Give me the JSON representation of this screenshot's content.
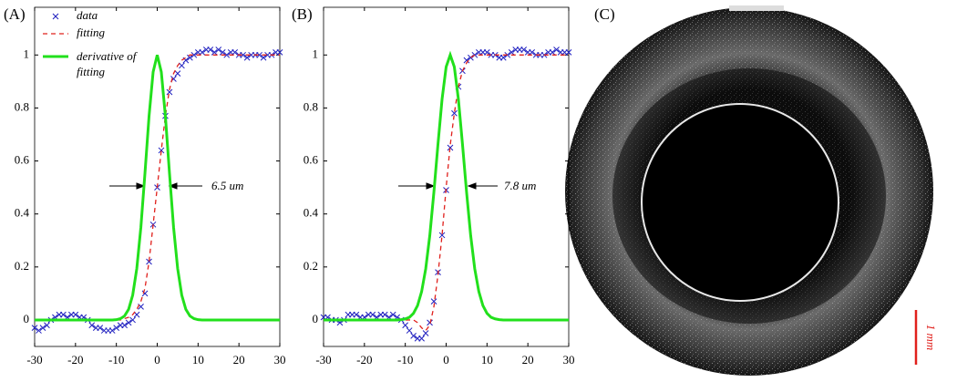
{
  "chart_data": [
    {
      "type": "line",
      "panel_label": "(A)",
      "annotation": "6.5 um",
      "legend": "upper left",
      "x": [
        -30,
        -29,
        -28,
        -27,
        -26,
        -25,
        -24,
        -23,
        -22,
        -21,
        -20,
        -19,
        -18,
        -17,
        -16,
        -15,
        -14,
        -13,
        -12,
        -11,
        -10,
        -9,
        -8,
        -7,
        -6,
        -5,
        -4,
        -3,
        -2,
        -1,
        0,
        1,
        2,
        3,
        4,
        5,
        6,
        7,
        8,
        9,
        10,
        11,
        12,
        13,
        14,
        15,
        16,
        17,
        18,
        19,
        20,
        21,
        22,
        23,
        24,
        25,
        26,
        27,
        28,
        29,
        30
      ],
      "series": [
        {
          "name": "data",
          "color": "#1f1fbf",
          "style": "marker",
          "values": [
            -0.03,
            -0.04,
            -0.03,
            -0.02,
            0,
            0.01,
            0.02,
            0.02,
            0.01,
            0.02,
            0.02,
            0.01,
            0.01,
            0,
            -0.02,
            -0.03,
            -0.03,
            -0.04,
            -0.04,
            -0.04,
            -0.03,
            -0.02,
            -0.02,
            -0.01,
            0,
            0.02,
            0.05,
            0.1,
            0.22,
            0.36,
            0.5,
            0.64,
            0.77,
            0.86,
            0.91,
            0.93,
            0.96,
            0.98,
            0.99,
            1,
            1.01,
            1.01,
            1.02,
            1.02,
            1.01,
            1.02,
            1.01,
            1,
            1.01,
            1.01,
            1,
            1,
            0.99,
            1,
            1,
            1,
            0.99,
            1,
            1,
            1.01,
            1.01
          ]
        },
        {
          "name": "fitting",
          "color": "#e0201c",
          "style": "dashed",
          "values": [
            0,
            0,
            0,
            0,
            0,
            0,
            0,
            0,
            0,
            0,
            0,
            0,
            0,
            0,
            0,
            0,
            0,
            0,
            0,
            0,
            0,
            0,
            0.005,
            0.01,
            0.02,
            0.04,
            0.07,
            0.12,
            0.22,
            0.36,
            0.5,
            0.64,
            0.77,
            0.87,
            0.93,
            0.96,
            0.98,
            0.99,
            1,
            1,
            1,
            1,
            1,
            1,
            1,
            1,
            1,
            1,
            1,
            1,
            1,
            1,
            1,
            1,
            1,
            1,
            1,
            1,
            1,
            1,
            1
          ]
        },
        {
          "name": "derivative of fitting",
          "color": "#22e01c",
          "style": "solid",
          "values": [
            0,
            0,
            0,
            0,
            0,
            0,
            0,
            0,
            0,
            0,
            0,
            0,
            0,
            0,
            0,
            0,
            0,
            0,
            0,
            0,
            0.001,
            0.005,
            0.015,
            0.04,
            0.094,
            0.194,
            0.35,
            0.554,
            0.769,
            0.936,
            1,
            0.936,
            0.769,
            0.554,
            0.35,
            0.194,
            0.094,
            0.04,
            0.015,
            0.005,
            0.001,
            0,
            0,
            0,
            0,
            0,
            0,
            0,
            0,
            0,
            0,
            0,
            0,
            0,
            0,
            0,
            0,
            0,
            0,
            0,
            0
          ]
        }
      ],
      "xlim": [
        -30,
        30
      ],
      "ylim": [
        -0.1,
        1.18
      ],
      "xticks": [
        -30,
        -20,
        -10,
        0,
        10,
        20,
        30
      ],
      "yticks": [
        0,
        0.2,
        0.4,
        0.6,
        0.8,
        1
      ]
    },
    {
      "type": "line",
      "panel_label": "(B)",
      "annotation": "7.8 um",
      "legend": false,
      "x": [
        -30,
        -29,
        -28,
        -27,
        -26,
        -25,
        -24,
        -23,
        -22,
        -21,
        -20,
        -19,
        -18,
        -17,
        -16,
        -15,
        -14,
        -13,
        -12,
        -11,
        -10,
        -9,
        -8,
        -7,
        -6,
        -5,
        -4,
        -3,
        -2,
        -1,
        0,
        1,
        2,
        3,
        4,
        5,
        6,
        7,
        8,
        9,
        10,
        11,
        12,
        13,
        14,
        15,
        16,
        17,
        18,
        19,
        20,
        21,
        22,
        23,
        24,
        25,
        26,
        27,
        28,
        29,
        30
      ],
      "series": [
        {
          "name": "data",
          "color": "#1f1fbf",
          "style": "marker",
          "values": [
            0.01,
            0.01,
            0,
            0,
            -0.01,
            0,
            0.02,
            0.02,
            0.02,
            0.01,
            0.01,
            0.02,
            0.02,
            0.01,
            0.02,
            0.02,
            0.01,
            0.02,
            0.01,
            0,
            -0.02,
            -0.04,
            -0.06,
            -0.07,
            -0.07,
            -0.05,
            -0.01,
            0.07,
            0.18,
            0.32,
            0.49,
            0.65,
            0.78,
            0.88,
            0.94,
            0.98,
            0.99,
            1,
            1.01,
            1.01,
            1.01,
            1,
            1,
            0.99,
            0.99,
            1,
            1.01,
            1.02,
            1.02,
            1.02,
            1.01,
            1.01,
            1,
            1,
            1,
            1.01,
            1.01,
            1.02,
            1.01,
            1.01,
            1.01
          ]
        },
        {
          "name": "fitting",
          "color": "#e0201c",
          "style": "dashed",
          "values": [
            0,
            0,
            0,
            0,
            0,
            0,
            0,
            0,
            0,
            0,
            0,
            0,
            0,
            0,
            0,
            0,
            0,
            0,
            0,
            0,
            0,
            0,
            0,
            -0.01,
            -0.03,
            -0.04,
            -0.02,
            0.05,
            0.17,
            0.32,
            0.5,
            0.66,
            0.78,
            0.88,
            0.94,
            0.97,
            0.99,
            1,
            1,
            1,
            1,
            1,
            1,
            1,
            1,
            1,
            1,
            1,
            1,
            1,
            1,
            1,
            1,
            1,
            1,
            1,
            1,
            1,
            1,
            1,
            1
          ]
        },
        {
          "name": "derivative of fitting",
          "color": "#22e01c",
          "style": "solid",
          "values": [
            0,
            0,
            0,
            0,
            0,
            0,
            0,
            0,
            0,
            0,
            0,
            0,
            0,
            0,
            0,
            0,
            0,
            0,
            0,
            0.001,
            0.004,
            0.01,
            0.025,
            0.054,
            0.107,
            0.193,
            0.319,
            0.482,
            0.663,
            0.833,
            0.955,
            1,
            0.955,
            0.833,
            0.663,
            0.482,
            0.319,
            0.193,
            0.107,
            0.054,
            0.025,
            0.01,
            0.004,
            0.001,
            0,
            0,
            0,
            0,
            0,
            0,
            0,
            0,
            0,
            0,
            0,
            0,
            0,
            0,
            0,
            0,
            0
          ]
        }
      ],
      "xlim": [
        -30,
        30
      ],
      "ylim": [
        -0.1,
        1.18
      ],
      "xticks": [
        -30,
        -20,
        -10,
        0,
        10,
        20,
        30
      ],
      "yticks": [
        0,
        0.2,
        0.4,
        0.6,
        0.8,
        1
      ]
    }
  ],
  "image_panel": {
    "panel_label": "(C)",
    "scale_bar": "1 mm"
  }
}
